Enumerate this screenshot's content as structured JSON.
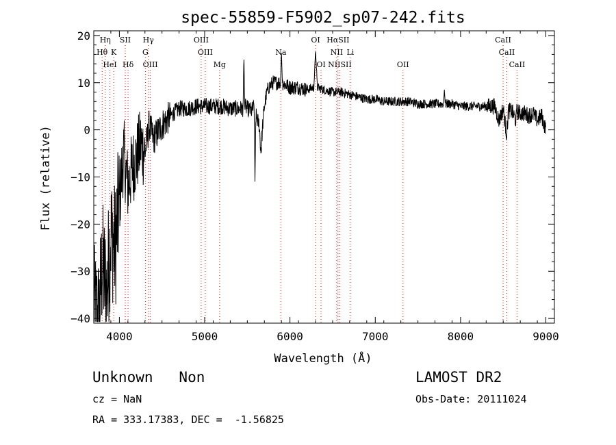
{
  "chart_data": {
    "type": "line",
    "title": "spec-55859-F5902_sp07-242.fits",
    "xlabel": "Wavelength (Å)",
    "ylabel": "Flux (relative)",
    "xlim": [
      3700,
      9100
    ],
    "ylim": [
      -41,
      21
    ],
    "x_ticks": [
      4000,
      5000,
      6000,
      7000,
      8000,
      9000
    ],
    "y_ticks": [
      -40,
      -30,
      -20,
      -10,
      0,
      10,
      20
    ],
    "grid": false,
    "legend": "none",
    "line_color": "#000000",
    "marker_color": "#ff0000",
    "spectrum_wavelength": [
      3700,
      3760,
      3800,
      3850,
      3900,
      3950,
      4000,
      4050,
      4100,
      4150,
      4200,
      4250,
      4300,
      4350,
      4400,
      4500,
      4600,
      4700,
      4800,
      4900,
      5000,
      5100,
      5200,
      5300,
      5400,
      5450,
      5460,
      5470,
      5500,
      5550,
      5580,
      5590,
      5600,
      5640,
      5660,
      5680,
      5700,
      5730,
      5750,
      5800,
      5850,
      5890,
      5900,
      5910,
      5950,
      6000,
      6100,
      6200,
      6280,
      6300,
      6320,
      6400,
      6500,
      6563,
      6600,
      6700,
      6800,
      6900,
      7000,
      7100,
      7200,
      7300,
      7400,
      7500,
      7600,
      7700,
      7800,
      7810,
      7820,
      7900,
      8000,
      8100,
      8200,
      8300,
      8400,
      8450,
      8500,
      8540,
      8560,
      8600,
      8650,
      8660,
      8700,
      8750,
      8800,
      8850,
      8900,
      8950,
      9000
    ],
    "spectrum_flux": [
      -38,
      -40,
      -28,
      -35,
      -22,
      -25,
      -15,
      -5,
      -12,
      -8,
      -6,
      -3,
      -5,
      1,
      -2,
      1,
      3,
      4.5,
      4.5,
      5,
      5,
      5,
      5,
      4.5,
      4.5,
      4.5,
      16,
      5,
      4.5,
      4,
      5,
      -11,
      3,
      1,
      -5,
      1,
      5,
      8,
      9,
      10,
      10,
      10,
      17,
      10,
      9.5,
      9,
      9,
      8.5,
      9,
      17,
      9,
      8.5,
      8,
      8,
      8,
      7.5,
      7,
      6.5,
      6.5,
      6,
      6,
      6,
      6,
      5.5,
      5.5,
      5.5,
      5.5,
      8.5,
      5.5,
      5.5,
      5,
      5,
      5,
      5,
      5,
      2,
      4.5,
      -1,
      4,
      4,
      2,
      4,
      3.5,
      3.5,
      3,
      3.5,
      2,
      3,
      0
    ],
    "lines": [
      {
        "label": "Hη",
        "wavelength": 3835,
        "row": 0
      },
      {
        "label": "SII",
        "wavelength": 4069,
        "row": 0
      },
      {
        "label": "Hγ",
        "wavelength": 4340,
        "row": 0
      },
      {
        "label": "OIII",
        "wavelength": 4959,
        "row": 0
      },
      {
        "label": "OI",
        "wavelength": 6300,
        "row": 0
      },
      {
        "label": "HαSII",
        "wavelength": 6563,
        "row": 0
      },
      {
        "label": "CaII",
        "wavelength": 8498,
        "row": 0
      },
      {
        "label": "Hθ",
        "wavelength": 3798,
        "row": 1
      },
      {
        "label": "K",
        "wavelength": 3934,
        "row": 1
      },
      {
        "label": "G",
        "wavelength": 4305,
        "row": 1
      },
      {
        "label": "OIII",
        "wavelength": 5007,
        "row": 1
      },
      {
        "label": "Na",
        "wavelength": 5893,
        "row": 1
      },
      {
        "label": "NII",
        "wavelength": 6548,
        "row": 1
      },
      {
        "label": "Li",
        "wavelength": 6708,
        "row": 1
      },
      {
        "label": "CaII",
        "wavelength": 8542,
        "row": 1
      },
      {
        "label": "HeI",
        "wavelength": 3889,
        "row": 2
      },
      {
        "label": "Hδ",
        "wavelength": 4102,
        "row": 2
      },
      {
        "label": "OIII",
        "wavelength": 4363,
        "row": 2
      },
      {
        "label": "Mg",
        "wavelength": 5175,
        "row": 2
      },
      {
        "label": "OI",
        "wavelength": 6364,
        "row": 2
      },
      {
        "label": "NIISII",
        "wavelength": 6584,
        "row": 2
      },
      {
        "label": "OII",
        "wavelength": 7325,
        "row": 2
      },
      {
        "label": "CaII",
        "wavelength": 8662,
        "row": 2
      }
    ]
  },
  "info": {
    "class_text": "Unknown   Non",
    "survey": "LAMOST DR2",
    "cz": "cz = NaN",
    "obs_date": "Obs-Date: 20111024",
    "radec": "RA = 333.17383, DEC =  -1.56825"
  }
}
